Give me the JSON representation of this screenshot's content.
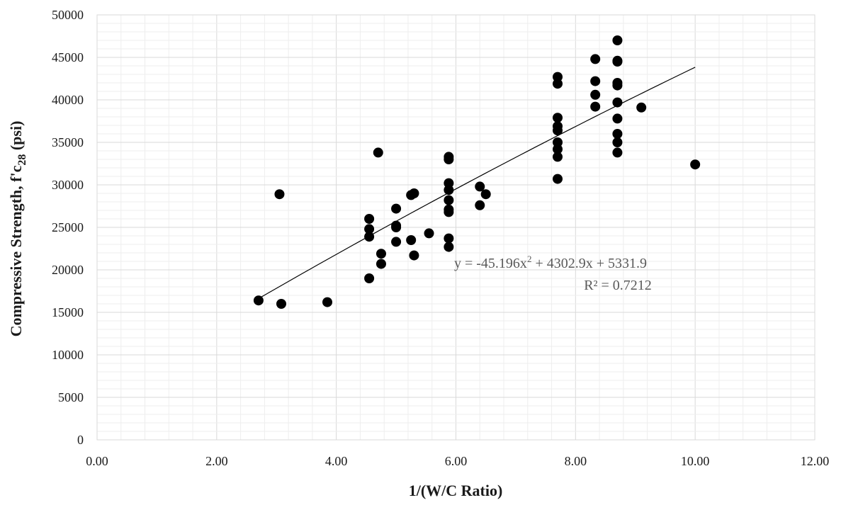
{
  "chart_data": {
    "type": "scatter",
    "title": "",
    "xlabel": "1/(W/C Ratio)",
    "ylabel": {
      "main": "Compressive Strength, f'c",
      "subscript": "28",
      "suffix": " (psi)"
    },
    "xlim": [
      0,
      12
    ],
    "ylim": [
      0,
      50000
    ],
    "x_ticks": [
      "0.00",
      "2.00",
      "4.00",
      "6.00",
      "8.00",
      "10.00",
      "12.00"
    ],
    "y_ticks": [
      "0",
      "5000",
      "10000",
      "15000",
      "20000",
      "25000",
      "30000",
      "35000",
      "40000",
      "45000",
      "50000"
    ],
    "grid": true,
    "minor_grid": true,
    "legend": "none",
    "marker_color": "#000000",
    "points": [
      {
        "x": 2.7,
        "y": 16400
      },
      {
        "x": 3.08,
        "y": 16000
      },
      {
        "x": 3.05,
        "y": 28900
      },
      {
        "x": 3.85,
        "y": 16200
      },
      {
        "x": 4.55,
        "y": 19000
      },
      {
        "x": 4.55,
        "y": 23900
      },
      {
        "x": 4.55,
        "y": 24800
      },
      {
        "x": 4.55,
        "y": 26000
      },
      {
        "x": 4.7,
        "y": 33800
      },
      {
        "x": 4.75,
        "y": 20700
      },
      {
        "x": 4.75,
        "y": 21900
      },
      {
        "x": 5.0,
        "y": 23300
      },
      {
        "x": 5.0,
        "y": 25000
      },
      {
        "x": 5.0,
        "y": 25200
      },
      {
        "x": 5.0,
        "y": 27200
      },
      {
        "x": 5.25,
        "y": 23500
      },
      {
        "x": 5.25,
        "y": 28800
      },
      {
        "x": 5.3,
        "y": 29000
      },
      {
        "x": 5.3,
        "y": 21700
      },
      {
        "x": 5.55,
        "y": 24300
      },
      {
        "x": 5.88,
        "y": 22700
      },
      {
        "x": 5.88,
        "y": 23700
      },
      {
        "x": 5.88,
        "y": 26800
      },
      {
        "x": 5.88,
        "y": 27100
      },
      {
        "x": 5.88,
        "y": 28200
      },
      {
        "x": 5.88,
        "y": 29400
      },
      {
        "x": 5.88,
        "y": 30200
      },
      {
        "x": 5.88,
        "y": 33000
      },
      {
        "x": 5.88,
        "y": 33300
      },
      {
        "x": 6.4,
        "y": 27600
      },
      {
        "x": 6.4,
        "y": 29800
      },
      {
        "x": 6.5,
        "y": 28900
      },
      {
        "x": 7.7,
        "y": 30700
      },
      {
        "x": 7.7,
        "y": 33300
      },
      {
        "x": 7.7,
        "y": 34200
      },
      {
        "x": 7.7,
        "y": 35000
      },
      {
        "x": 7.7,
        "y": 36400
      },
      {
        "x": 7.7,
        "y": 36900
      },
      {
        "x": 7.7,
        "y": 37900
      },
      {
        "x": 7.7,
        "y": 41900
      },
      {
        "x": 7.7,
        "y": 42700
      },
      {
        "x": 8.33,
        "y": 39200
      },
      {
        "x": 8.33,
        "y": 40600
      },
      {
        "x": 8.33,
        "y": 42200
      },
      {
        "x": 8.33,
        "y": 44800
      },
      {
        "x": 8.7,
        "y": 33800
      },
      {
        "x": 8.7,
        "y": 35000
      },
      {
        "x": 8.7,
        "y": 36000
      },
      {
        "x": 8.7,
        "y": 37800
      },
      {
        "x": 8.7,
        "y": 39700
      },
      {
        "x": 8.7,
        "y": 41700
      },
      {
        "x": 8.7,
        "y": 42000
      },
      {
        "x": 8.7,
        "y": 44500
      },
      {
        "x": 8.7,
        "y": 44600
      },
      {
        "x": 8.7,
        "y": 47000
      },
      {
        "x": 9.1,
        "y": 39100
      },
      {
        "x": 10.0,
        "y": 32400
      }
    ],
    "trendline": {
      "type": "polynomial",
      "coefficients": {
        "a": -45.196,
        "b": 4302.9,
        "c": 5331.9
      },
      "x_range": [
        2.7,
        10.0
      ],
      "color": "#000000",
      "equation_label": {
        "main": "y = -45.196x",
        "superscript": "2",
        "suffix": " + 4302.9x + 5331.9"
      },
      "r2_label": "R² = 0.7212"
    }
  }
}
